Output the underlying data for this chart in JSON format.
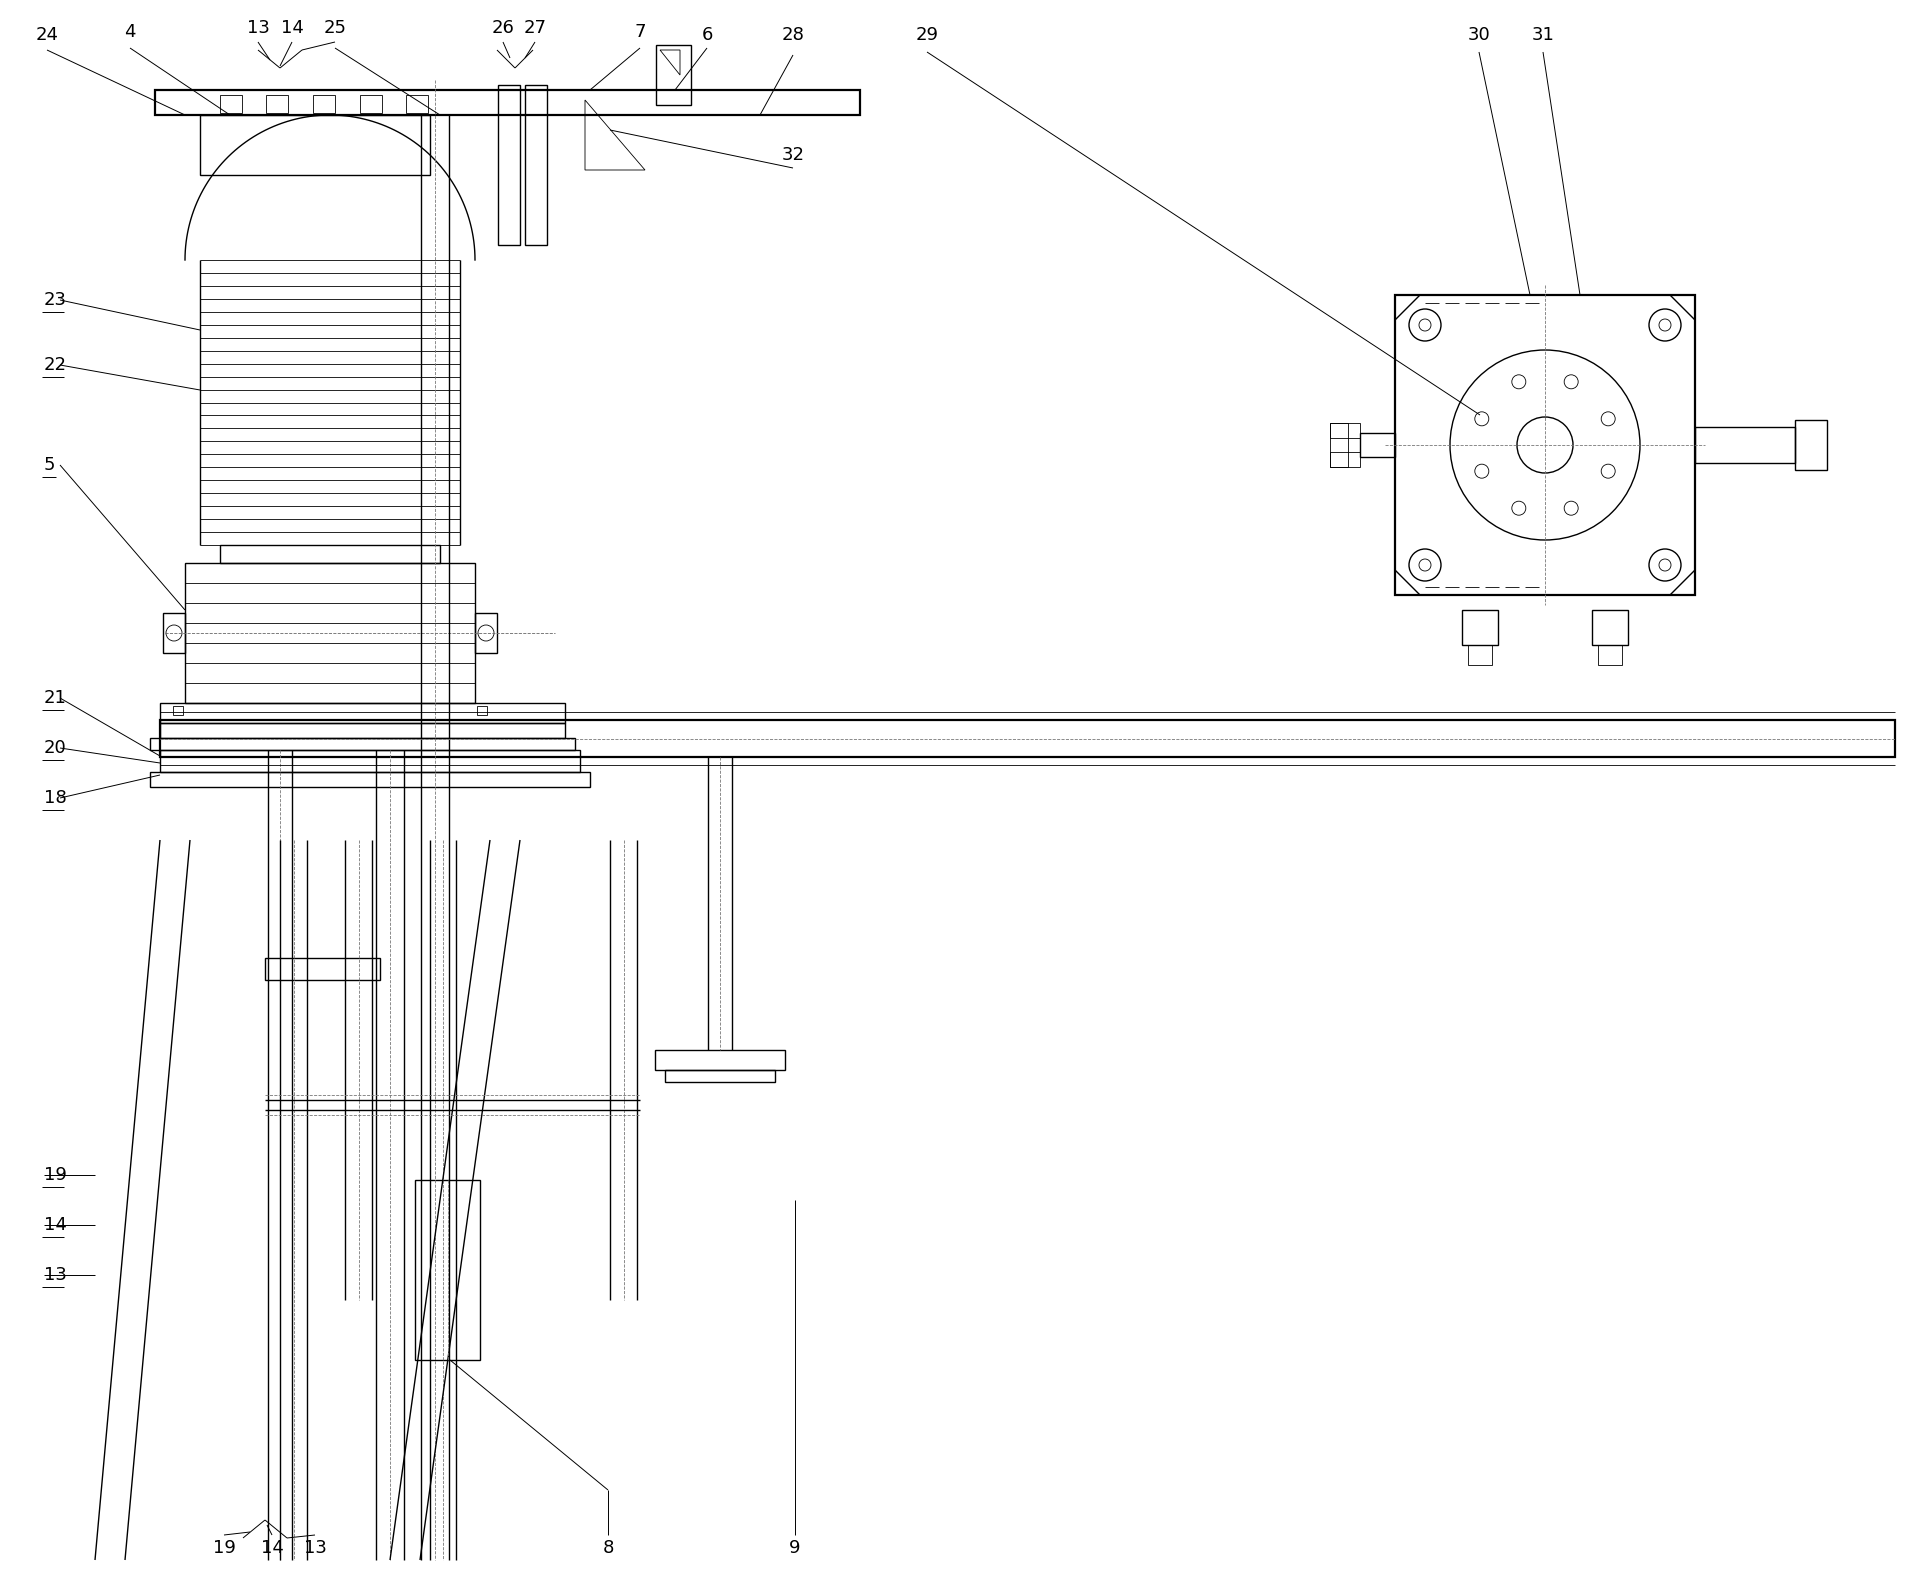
{
  "bg_color": "#ffffff",
  "line_color": "#000000",
  "figsize": [
    19.27,
    15.91
  ],
  "dpi": 100,
  "lw_main": 1.0,
  "lw_thin": 0.6,
  "lw_thick": 1.6,
  "lw_leader": 0.7,
  "label_font": 13,
  "top_labels": [
    [
      "24",
      47,
      35
    ],
    [
      "4",
      130,
      32
    ],
    [
      "13",
      258,
      28
    ],
    [
      "14",
      292,
      28
    ],
    [
      "25",
      335,
      28
    ],
    [
      "26",
      503,
      28
    ],
    [
      "27",
      535,
      28
    ],
    [
      "7",
      640,
      32
    ],
    [
      "6",
      707,
      35
    ],
    [
      "28",
      793,
      35
    ],
    [
      "29",
      927,
      35
    ],
    [
      "30",
      1479,
      35
    ],
    [
      "31",
      1543,
      35
    ],
    [
      "32",
      793,
      155
    ]
  ],
  "left_labels": [
    [
      "23",
      44,
      300
    ],
    [
      "22",
      44,
      365
    ],
    [
      "5",
      44,
      465
    ],
    [
      "21",
      44,
      698
    ],
    [
      "20",
      44,
      748
    ],
    [
      "18",
      44,
      798
    ]
  ],
  "bl_labels": [
    [
      "19",
      44,
      1175
    ],
    [
      "14",
      44,
      1225
    ],
    [
      "13",
      44,
      1275
    ]
  ],
  "bot_labels": [
    [
      "19",
      224,
      1548
    ],
    [
      "14",
      272,
      1548
    ],
    [
      "13",
      315,
      1548
    ],
    [
      "8",
      608,
      1548
    ],
    [
      "9",
      795,
      1548
    ]
  ]
}
